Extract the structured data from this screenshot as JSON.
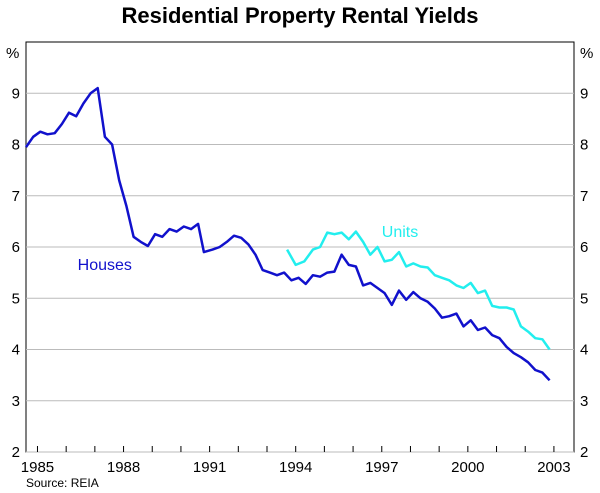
{
  "chart_data": {
    "type": "line",
    "title": "Residential Property Rental Yields",
    "source": "Source: REIA",
    "ylabel_left": "%",
    "ylabel_right": "%",
    "xlim": [
      1984.6,
      2003.7
    ],
    "ylim": [
      2,
      10
    ],
    "y_ticks": [
      "2",
      "3",
      "4",
      "5",
      "6",
      "7",
      "8",
      "9"
    ],
    "x_tick_values": [
      1985,
      1988,
      1991,
      1994,
      1997,
      2000,
      2003
    ],
    "x_tick_labels": [
      "1985",
      "1988",
      "1991",
      "1994",
      "1997",
      "2000",
      "2003"
    ],
    "series": [
      {
        "name": "Houses",
        "color": "#1111cc",
        "label_at": [
          1986.4,
          5.55
        ],
        "points": [
          [
            1984.6,
            7.95
          ],
          [
            1984.85,
            8.15
          ],
          [
            1985.1,
            8.25
          ],
          [
            1985.35,
            8.2
          ],
          [
            1985.6,
            8.22
          ],
          [
            1985.85,
            8.4
          ],
          [
            1986.1,
            8.62
          ],
          [
            1986.35,
            8.55
          ],
          [
            1986.6,
            8.8
          ],
          [
            1986.85,
            9.0
          ],
          [
            1987.1,
            9.1
          ],
          [
            1987.35,
            8.15
          ],
          [
            1987.6,
            8.0
          ],
          [
            1987.85,
            7.3
          ],
          [
            1988.1,
            6.8
          ],
          [
            1988.35,
            6.2
          ],
          [
            1988.6,
            6.1
          ],
          [
            1988.85,
            6.02
          ],
          [
            1989.1,
            6.25
          ],
          [
            1989.35,
            6.2
          ],
          [
            1989.6,
            6.35
          ],
          [
            1989.85,
            6.3
          ],
          [
            1990.1,
            6.4
          ],
          [
            1990.35,
            6.35
          ],
          [
            1990.6,
            6.45
          ],
          [
            1990.8,
            5.9
          ],
          [
            1991.1,
            5.95
          ],
          [
            1991.35,
            6.0
          ],
          [
            1991.6,
            6.1
          ],
          [
            1991.85,
            6.22
          ],
          [
            1992.1,
            6.18
          ],
          [
            1992.35,
            6.05
          ],
          [
            1992.6,
            5.85
          ],
          [
            1992.85,
            5.55
          ],
          [
            1993.1,
            5.5
          ],
          [
            1993.35,
            5.45
          ],
          [
            1993.6,
            5.5
          ],
          [
            1993.85,
            5.35
          ],
          [
            1994.1,
            5.4
          ],
          [
            1994.35,
            5.28
          ],
          [
            1994.6,
            5.45
          ],
          [
            1994.85,
            5.42
          ],
          [
            1995.1,
            5.5
          ],
          [
            1995.35,
            5.52
          ],
          [
            1995.6,
            5.85
          ],
          [
            1995.85,
            5.65
          ],
          [
            1996.1,
            5.62
          ],
          [
            1996.35,
            5.25
          ],
          [
            1996.6,
            5.3
          ],
          [
            1996.85,
            5.2
          ],
          [
            1997.1,
            5.1
          ],
          [
            1997.35,
            4.87
          ],
          [
            1997.6,
            5.15
          ],
          [
            1997.85,
            4.97
          ],
          [
            1998.1,
            5.12
          ],
          [
            1998.35,
            5.0
          ],
          [
            1998.6,
            4.93
          ],
          [
            1998.85,
            4.8
          ],
          [
            1999.1,
            4.62
          ],
          [
            1999.35,
            4.65
          ],
          [
            1999.6,
            4.7
          ],
          [
            1999.85,
            4.45
          ],
          [
            2000.1,
            4.57
          ],
          [
            2000.35,
            4.38
          ],
          [
            2000.6,
            4.43
          ],
          [
            2000.85,
            4.28
          ],
          [
            2001.1,
            4.22
          ],
          [
            2001.35,
            4.05
          ],
          [
            2001.6,
            3.93
          ],
          [
            2001.85,
            3.85
          ],
          [
            2002.1,
            3.75
          ],
          [
            2002.35,
            3.6
          ],
          [
            2002.6,
            3.55
          ],
          [
            2002.85,
            3.4
          ]
        ]
      },
      {
        "name": "Units",
        "color": "#22eeee",
        "label_at": [
          1997.0,
          6.2
        ],
        "points": [
          [
            1993.7,
            5.95
          ],
          [
            1994.0,
            5.65
          ],
          [
            1994.3,
            5.72
          ],
          [
            1994.6,
            5.95
          ],
          [
            1994.85,
            6.0
          ],
          [
            1995.1,
            6.28
          ],
          [
            1995.35,
            6.25
          ],
          [
            1995.6,
            6.28
          ],
          [
            1995.85,
            6.15
          ],
          [
            1996.1,
            6.3
          ],
          [
            1996.35,
            6.1
          ],
          [
            1996.6,
            5.85
          ],
          [
            1996.85,
            6.0
          ],
          [
            1997.1,
            5.72
          ],
          [
            1997.35,
            5.75
          ],
          [
            1997.6,
            5.9
          ],
          [
            1997.85,
            5.62
          ],
          [
            1998.1,
            5.68
          ],
          [
            1998.35,
            5.62
          ],
          [
            1998.6,
            5.6
          ],
          [
            1998.85,
            5.45
          ],
          [
            1999.1,
            5.4
          ],
          [
            1999.35,
            5.35
          ],
          [
            1999.6,
            5.25
          ],
          [
            1999.85,
            5.2
          ],
          [
            2000.1,
            5.3
          ],
          [
            2000.35,
            5.1
          ],
          [
            2000.6,
            5.15
          ],
          [
            2000.85,
            4.85
          ],
          [
            2001.1,
            4.82
          ],
          [
            2001.35,
            4.82
          ],
          [
            2001.6,
            4.78
          ],
          [
            2001.85,
            4.45
          ],
          [
            2002.1,
            4.35
          ],
          [
            2002.35,
            4.22
          ],
          [
            2002.6,
            4.2
          ],
          [
            2002.85,
            4.0
          ]
        ]
      }
    ]
  }
}
